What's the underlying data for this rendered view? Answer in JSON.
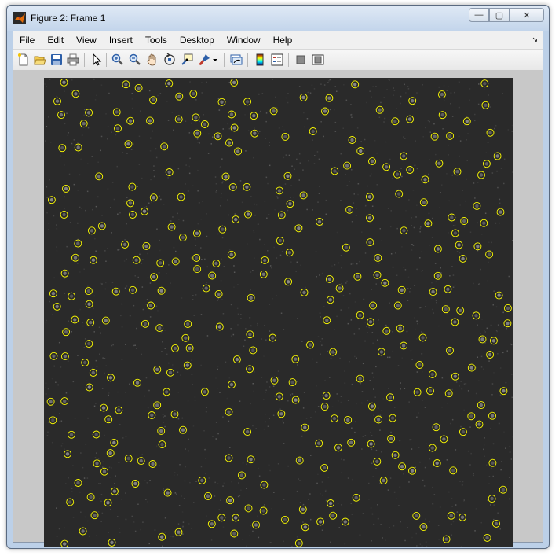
{
  "window": {
    "title": "Figure 2:  Frame 1",
    "controls": {
      "minimize": "—",
      "maximize": "▢",
      "close": "✕"
    }
  },
  "menubar": {
    "items": [
      {
        "label": "File"
      },
      {
        "label": "Edit"
      },
      {
        "label": "View"
      },
      {
        "label": "Insert"
      },
      {
        "label": "Tools"
      },
      {
        "label": "Desktop"
      },
      {
        "label": "Window"
      },
      {
        "label": "Help"
      }
    ],
    "dock_glyph": "↘"
  },
  "toolbar": {
    "icons": [
      "new-figure-icon",
      "open-file-icon",
      "save-icon",
      "print-icon",
      "select-arrow-icon",
      "zoom-in-icon",
      "zoom-out-icon",
      "pan-hand-icon",
      "rotate-3d-icon",
      "data-cursor-icon",
      "brush-icon",
      "brush-dropdown-icon",
      "link-plot-icon",
      "colorbar-icon",
      "legend-icon",
      "hide-plot-tools-icon",
      "show-plot-tools-icon"
    ]
  },
  "colors": {
    "marker": "#ffff00",
    "image_background": "#2a2a2a",
    "figure_background": "#c8c8c8"
  }
}
